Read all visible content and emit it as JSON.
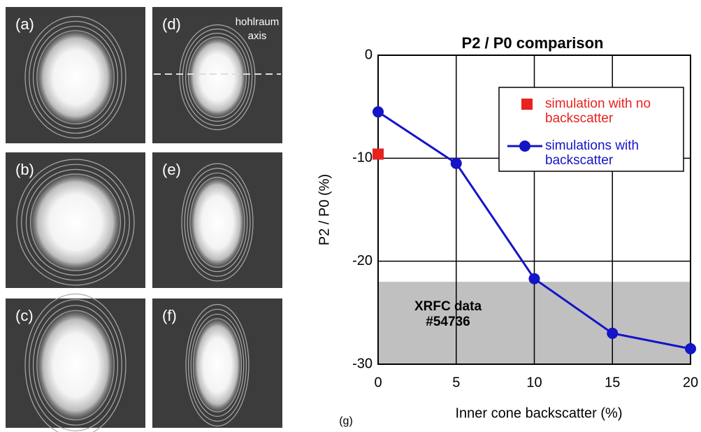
{
  "panels": [
    {
      "label": "(a)"
    },
    {
      "label": "(d)",
      "note": "hohlraum axis"
    },
    {
      "label": "(b)"
    },
    {
      "label": "(e)"
    },
    {
      "label": "(c)"
    },
    {
      "label": "(f)"
    }
  ],
  "chart_data": {
    "type": "line",
    "title": "P2 / P0 comparison",
    "panel_label": "(g)",
    "x_label": "Inner cone backscatter (%)",
    "y_label": "P2 / P0 (%)",
    "xlim": [
      0,
      20
    ],
    "xticks": [
      0,
      5,
      10,
      15,
      20
    ],
    "ylim": [
      -30,
      0
    ],
    "yticks": [
      0,
      -10,
      -20,
      -30
    ],
    "grid": true,
    "legend": "upper right",
    "shade": {
      "ylim": [
        -30,
        -22
      ],
      "label": "XRFC data #54736",
      "color": "#c0c0c0"
    },
    "series": [
      {
        "name": "simulation with no backscatter",
        "color": "#e8221e",
        "marker": "square",
        "x": [
          0
        ],
        "values": [
          -9.6
        ]
      },
      {
        "name": "simulations with backscatter",
        "color": "#1414c8",
        "marker": "circle",
        "x": [
          0,
          5,
          10,
          15,
          20
        ],
        "values": [
          -5.5,
          -10.5,
          -21.7,
          -27,
          -28.5
        ]
      }
    ]
  }
}
